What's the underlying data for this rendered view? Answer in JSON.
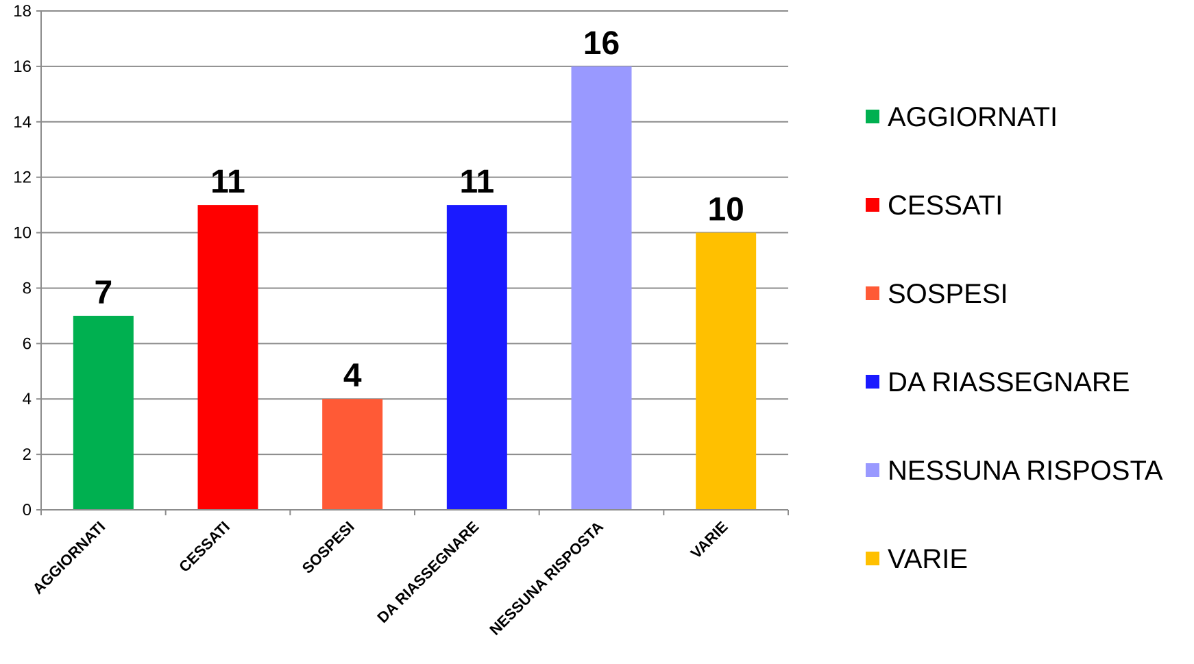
{
  "chart_data": {
    "type": "bar",
    "categories": [
      "AGGIORNATI",
      "CESSATI",
      "SOSPESI",
      "DA RIASSEGNARE",
      "NESSUNA RISPOSTA",
      "VARIE"
    ],
    "values": [
      7,
      11,
      4,
      11,
      16,
      10
    ],
    "data_labels": [
      "7",
      "11",
      "4",
      "11",
      "16",
      "10"
    ],
    "colors": [
      "#00b050",
      "#ff0000",
      "#ff5a36",
      "#1a1aff",
      "#9999ff",
      "#ffc000"
    ],
    "title": "",
    "xlabel": "",
    "ylabel": "",
    "ylim": [
      0,
      18
    ],
    "yticks": [
      0,
      2,
      4,
      6,
      8,
      10,
      12,
      14,
      16,
      18
    ],
    "ytick_labels": [
      "0",
      "2",
      "4",
      "6",
      "8",
      "10",
      "12",
      "14",
      "16",
      "18"
    ],
    "grid": true,
    "legend": {
      "placement": "right",
      "entries": [
        "AGGIORNATI",
        "CESSATI",
        "SOSPESI",
        "DA RIASSEGNARE",
        "NESSUNA RISPOSTA",
        "VARIE"
      ]
    }
  }
}
